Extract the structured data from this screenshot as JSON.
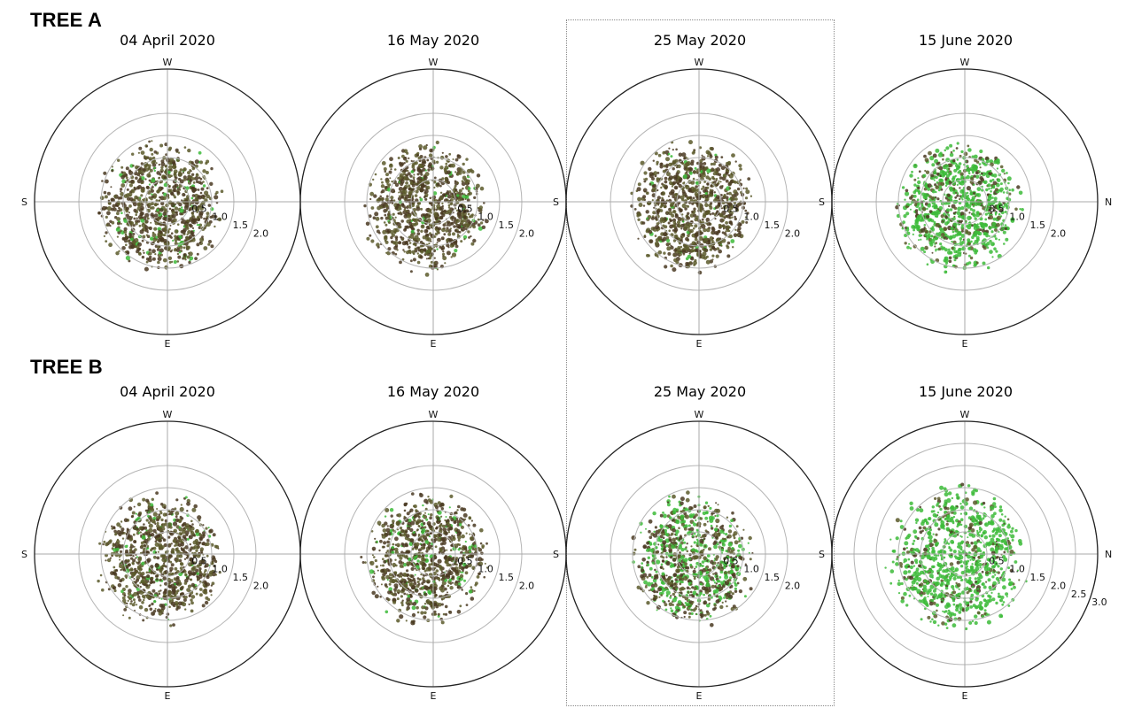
{
  "colors": {
    "outer_ring": "#222222",
    "grid_ring": "#b5b5b5",
    "axis_line": "#a8a8a8",
    "canopy_dark": "#4a3a22",
    "canopy_mid": "#5c5a2c",
    "canopy_green": "#3dbb3a",
    "highlight_border": "#8a8a8a"
  },
  "trees": [
    {
      "label": "TREE A",
      "panels": [
        {
          "date": "04 April 2020",
          "compass": {
            "top": "W",
            "left": "S",
            "right": "",
            "bottom": "E"
          },
          "radial_ticks": [
            "0.5",
            "1.0",
            "1.5",
            "2.0"
          ],
          "greenness": 0.08
        },
        {
          "date": "16 May 2020",
          "compass": {
            "top": "W",
            "left": "",
            "right": "",
            "bottom": "E"
          },
          "radial_ticks": [
            "0.5",
            "1.0",
            "1.5",
            "2.0"
          ],
          "greenness": 0.05
        },
        {
          "date": "25 May 2020",
          "compass": {
            "top": "W",
            "left": "S",
            "right": "",
            "bottom": "E"
          },
          "radial_ticks": [
            "0.5",
            "1.0",
            "1.5",
            "2.0"
          ],
          "greenness": 0.05
        },
        {
          "date": "15 June 2020",
          "compass": {
            "top": "W",
            "left": "S",
            "right": "N",
            "bottom": "E"
          },
          "radial_ticks": [
            "0.5",
            "1.0",
            "1.5",
            "2.0"
          ],
          "greenness": 0.7
        }
      ]
    },
    {
      "label": "TREE B",
      "panels": [
        {
          "date": "04 April 2020",
          "compass": {
            "top": "W",
            "left": "S",
            "right": "",
            "bottom": "E"
          },
          "radial_ticks": [
            "0.5",
            "1.0",
            "1.5",
            "2.0"
          ],
          "greenness": 0.08
        },
        {
          "date": "16 May 2020",
          "compass": {
            "top": "W",
            "left": "",
            "right": "",
            "bottom": "E"
          },
          "radial_ticks": [
            "0.5",
            "1.0",
            "1.5",
            "2.0"
          ],
          "greenness": 0.12
        },
        {
          "date": "25 May 2020",
          "compass": {
            "top": "W",
            "left": "S",
            "right": "",
            "bottom": "E"
          },
          "radial_ticks": [
            "0.5",
            "1.0",
            "1.5",
            "2.0"
          ],
          "greenness": 0.45
        },
        {
          "date": "15 June 2020",
          "compass": {
            "top": "W",
            "left": "S",
            "right": "N",
            "bottom": "E"
          },
          "radial_ticks": [
            "0.5",
            "1.0",
            "1.5",
            "2.0",
            "2.5",
            "3.0"
          ],
          "greenness": 0.8
        }
      ]
    }
  ]
}
